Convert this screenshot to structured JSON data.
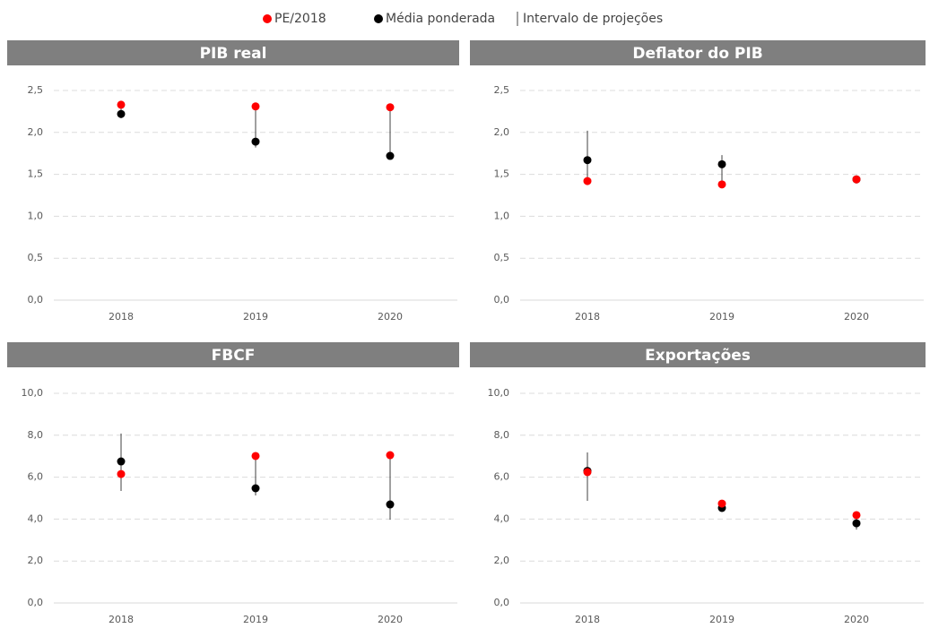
{
  "chart_data": [
    {
      "type": "dot-range",
      "title": "PIB real",
      "categories": [
        "2018",
        "2019",
        "2020"
      ],
      "ylim": [
        0,
        2.5
      ],
      "yticks": [
        {
          "value": 0,
          "label": "0,0"
        },
        {
          "value": 0.5,
          "label": "0,5"
        },
        {
          "value": 1,
          "label": "1,0"
        },
        {
          "value": 1.5,
          "label": "1,5"
        },
        {
          "value": 2,
          "label": "2,0"
        },
        {
          "value": 2.5,
          "label": "2,5"
        }
      ],
      "grid": true,
      "series": [
        {
          "name": "PE/2018",
          "color": "#ff0000",
          "values": [
            2.33,
            2.31,
            2.3
          ]
        },
        {
          "name": "Média ponderada",
          "color": "#000000",
          "values": [
            2.22,
            1.89,
            1.72
          ]
        },
        {
          "name": "Intervalo de projeções",
          "color": "#404040",
          "low": [
            2.17,
            1.82,
            1.7
          ],
          "high": [
            2.33,
            2.31,
            2.3
          ]
        }
      ]
    },
    {
      "type": "dot-range",
      "title": "Deflator do PIB",
      "categories": [
        "2018",
        "2019",
        "2020"
      ],
      "ylim": [
        0,
        2.5
      ],
      "yticks": [
        {
          "value": 0,
          "label": "0,0"
        },
        {
          "value": 0.5,
          "label": "0,5"
        },
        {
          "value": 1,
          "label": "1,0"
        },
        {
          "value": 1.5,
          "label": "1,5"
        },
        {
          "value": 2,
          "label": "2,0"
        },
        {
          "value": 2.5,
          "label": "2,5"
        }
      ],
      "grid": true,
      "series": [
        {
          "name": "PE/2018",
          "color": "#ff0000",
          "values": [
            1.42,
            1.38,
            1.44
          ]
        },
        {
          "name": "Média ponderada",
          "color": "#000000",
          "values": [
            1.67,
            1.62,
            1.44
          ]
        },
        {
          "name": "Intervalo de projeções",
          "color": "#404040",
          "low": [
            1.38,
            1.38,
            null
          ],
          "high": [
            2.02,
            1.73,
            null
          ]
        }
      ]
    },
    {
      "type": "dot-range",
      "title": "FBCF",
      "categories": [
        "2018",
        "2019",
        "2020"
      ],
      "ylim": [
        0,
        10
      ],
      "yticks": [
        {
          "value": 0,
          "label": "0,0"
        },
        {
          "value": 2,
          "label": "2,0"
        },
        {
          "value": 4,
          "label": "4,0"
        },
        {
          "value": 6,
          "label": "6,0"
        },
        {
          "value": 8,
          "label": "8,0"
        },
        {
          "value": 10,
          "label": "10,0"
        }
      ],
      "grid": true,
      "series": [
        {
          "name": "PE/2018",
          "color": "#ff0000",
          "values": [
            6.15,
            7.01,
            7.05
          ]
        },
        {
          "name": "Média ponderada",
          "color": "#000000",
          "values": [
            6.75,
            5.47,
            4.7
          ]
        },
        {
          "name": "Intervalo de projeções",
          "color": "#404040",
          "low": [
            5.34,
            5.13,
            3.97
          ],
          "high": [
            8.08,
            7.01,
            7.05
          ]
        }
      ]
    },
    {
      "type": "dot-range",
      "title": "Exportações",
      "categories": [
        "2018",
        "2019",
        "2020"
      ],
      "ylim": [
        0,
        10
      ],
      "yticks": [
        {
          "value": 0,
          "label": "0,0"
        },
        {
          "value": 2,
          "label": "2,0"
        },
        {
          "value": 4,
          "label": "4,0"
        },
        {
          "value": 6,
          "label": "6,0"
        },
        {
          "value": 8,
          "label": "8,0"
        },
        {
          "value": 10,
          "label": "10,0"
        }
      ],
      "grid": true,
      "series": [
        {
          "name": "PE/2018",
          "color": "#ff0000",
          "values": [
            6.24,
            4.74,
            4.19
          ]
        },
        {
          "name": "Média ponderada",
          "color": "#000000",
          "values": [
            6.3,
            4.53,
            3.8
          ]
        },
        {
          "name": "Intervalo de projeções",
          "color": "#404040",
          "low": [
            4.87,
            4.45,
            3.5
          ],
          "high": [
            7.18,
            4.74,
            4.19
          ]
        }
      ]
    }
  ]
}
